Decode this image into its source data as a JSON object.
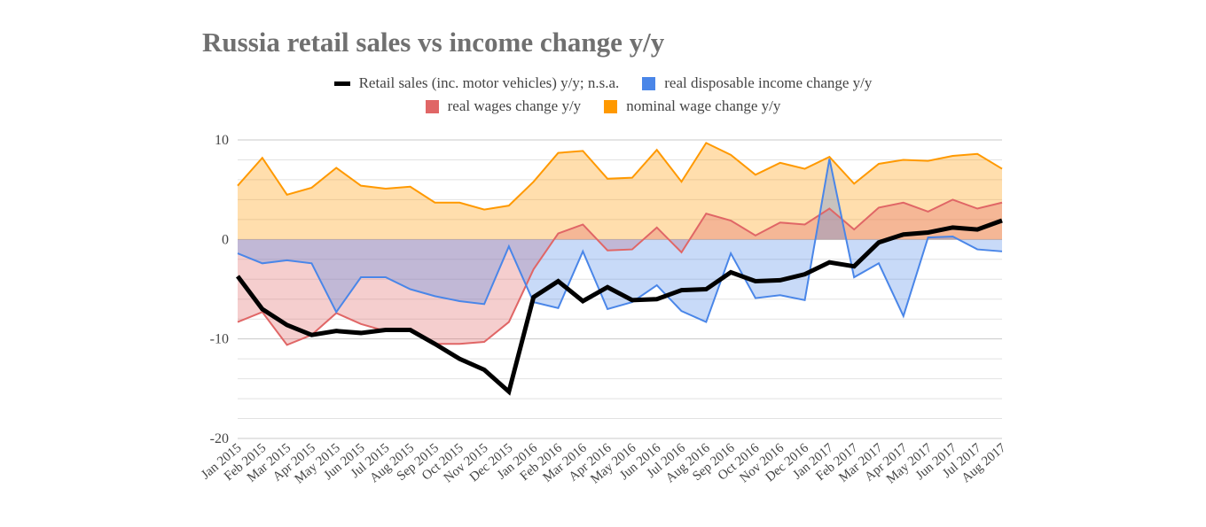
{
  "chart_data": {
    "type": "area",
    "title": "Russia retail sales vs income change y/y",
    "xlabel": "",
    "ylabel": "",
    "ylim": [
      -20,
      10
    ],
    "yticks": [
      10,
      0,
      -10,
      -20
    ],
    "grid": true,
    "legend_position": "top",
    "categories": [
      "Jan 2015",
      "Feb 2015",
      "Mar 2015",
      "Apr 2015",
      "May 2015",
      "Jun 2015",
      "Jul 2015",
      "Aug 2015",
      "Sep 2015",
      "Oct 2015",
      "Nov 2015",
      "Dec 2015",
      "Jan 2016",
      "Feb 2016",
      "Mar 2016",
      "Apr 2016",
      "May 2016",
      "Jun 2016",
      "Jul 2016",
      "Aug 2016",
      "Sep 2016",
      "Oct 2016",
      "Nov 2016",
      "Dec 2016",
      "Jan 2017",
      "Feb 2017",
      "Mar 2017",
      "Apr 2017",
      "May 2017",
      "Jun 2017",
      "Jul 2017",
      "Aug 2017"
    ],
    "series": [
      {
        "name": "Retail sales (inc. motor vehicles) y/y; n.s.a.",
        "key": "retail",
        "color": "#000000",
        "style": "line",
        "values": [
          -3.7,
          -7.0,
          -8.6,
          -9.6,
          -9.2,
          -9.4,
          -9.1,
          -9.1,
          -10.5,
          -12.0,
          -13.1,
          -15.3,
          -5.8,
          -4.2,
          -6.2,
          -4.8,
          -6.1,
          -6.0,
          -5.1,
          -5.0,
          -3.3,
          -4.2,
          -4.1,
          -3.5,
          -2.3,
          -2.7,
          -0.3,
          0.5,
          0.7,
          1.2,
          1.0,
          1.9
        ]
      },
      {
        "name": "real disposable income change y/y",
        "key": "income",
        "color": "#4a86e8",
        "style": "area",
        "values": [
          -1.4,
          -2.4,
          -2.1,
          -2.4,
          -7.3,
          -3.8,
          -3.8,
          -5.0,
          -5.7,
          -6.2,
          -6.5,
          -0.7,
          -6.3,
          -6.9,
          -1.2,
          -7.0,
          -6.3,
          -4.6,
          -7.2,
          -8.3,
          -1.4,
          -5.9,
          -5.6,
          -6.1,
          8.1,
          -3.8,
          -2.4,
          -7.7,
          0.2,
          0.3,
          -1.0,
          -1.2
        ]
      },
      {
        "name": "real wages change y/y",
        "key": "wages",
        "color": "#e06666",
        "style": "area",
        "values": [
          -8.3,
          -7.3,
          -10.6,
          -9.6,
          -7.4,
          -8.5,
          -9.2,
          -9.0,
          -10.5,
          -10.5,
          -10.3,
          -8.3,
          -3.0,
          0.6,
          1.5,
          -1.1,
          -1.0,
          1.2,
          -1.3,
          2.6,
          1.9,
          0.4,
          1.7,
          1.5,
          3.1,
          1.0,
          3.2,
          3.7,
          2.8,
          4.0,
          3.1,
          3.7
        ]
      },
      {
        "name": "nominal wage change y/y",
        "key": "nominal",
        "color": "#ff9900",
        "style": "area",
        "values": [
          5.4,
          8.2,
          4.5,
          5.2,
          7.2,
          5.4,
          5.1,
          5.3,
          3.7,
          3.7,
          3.0,
          3.4,
          5.8,
          8.7,
          8.9,
          6.1,
          6.2,
          9.0,
          5.8,
          9.7,
          8.5,
          6.5,
          7.7,
          7.1,
          8.3,
          5.6,
          7.6,
          8.0,
          7.9,
          8.4,
          8.6,
          7.1
        ]
      }
    ]
  }
}
